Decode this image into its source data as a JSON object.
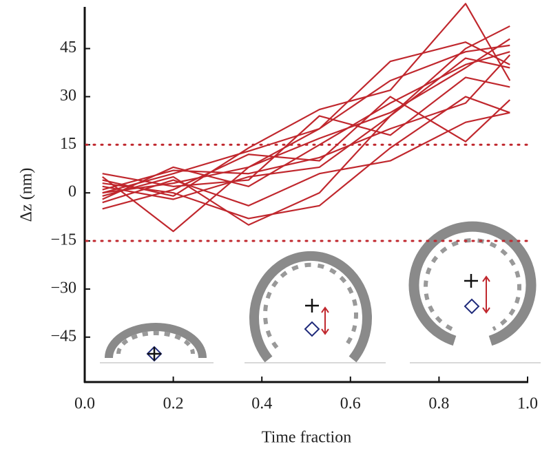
{
  "chart_data": {
    "type": "line",
    "y_label": "Δz (nm)",
    "x_label": "Time fraction",
    "xlim": [
      0,
      1
    ],
    "ylim": [
      -59,
      58
    ],
    "xticks": [
      {
        "value": 0,
        "label": "0.0"
      },
      0.2,
      0.4,
      0.6,
      0.8,
      {
        "value": 1,
        "label": "1.0"
      }
    ],
    "yticks": [
      {
        "value": -45,
        "label": "−45"
      },
      {
        "value": -30,
        "label": "−30"
      },
      {
        "value": -15,
        "label": "−15"
      },
      0,
      15,
      30,
      45
    ],
    "reference_lines": [
      15,
      -15
    ],
    "reference_color": "#c0272d",
    "x": [
      0.04,
      0.2,
      0.37,
      0.53,
      0.69,
      0.86,
      0.96
    ],
    "series": [
      {
        "color": "#c0272d",
        "values": [
          -1,
          5,
          -10,
          0,
          24,
          45,
          52
        ]
      },
      {
        "color": "#c0272d",
        "values": [
          5,
          -12,
          8,
          20,
          41,
          47,
          40
        ]
      },
      {
        "color": "#c0272d",
        "values": [
          0,
          6,
          13,
          20,
          35,
          44,
          46
        ]
      },
      {
        "color": "#c0272d",
        "values": [
          3,
          0,
          -8,
          -4,
          14,
          30,
          25
        ]
      },
      {
        "color": "#c0272d",
        "values": [
          -2,
          8,
          2,
          15,
          28,
          40,
          44
        ]
      },
      {
        "color": "#c0272d",
        "values": [
          6,
          2,
          4,
          24,
          18,
          36,
          33
        ]
      },
      {
        "color": "#c0272d",
        "values": [
          -5,
          1,
          12,
          10,
          30,
          16,
          29
        ]
      },
      {
        "color": "#c0272d",
        "values": [
          2,
          -2,
          5,
          8,
          24,
          42,
          39
        ]
      },
      {
        "color": "#c0272d",
        "values": [
          0,
          3,
          8,
          17,
          25,
          39,
          48
        ]
      },
      {
        "color": "#c0272d",
        "values": [
          -3,
          4,
          -4,
          6,
          10,
          22,
          25
        ]
      },
      {
        "color": "#c0272d",
        "values": [
          4,
          -1,
          14,
          26,
          32,
          59,
          35
        ]
      },
      {
        "color": "#c0272d",
        "values": [
          1,
          7,
          6,
          11,
          20,
          28,
          43
        ]
      }
    ]
  }
}
